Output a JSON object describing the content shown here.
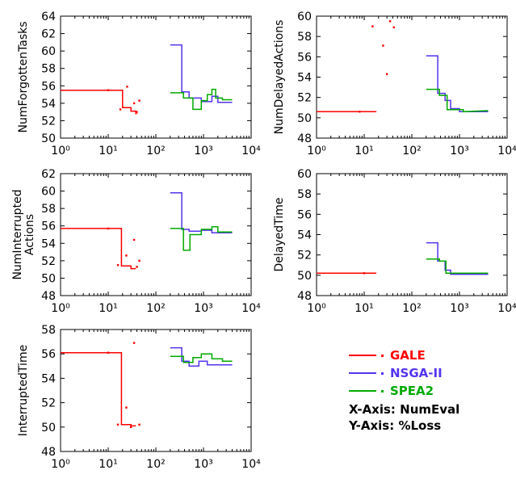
{
  "chart_data": [
    {
      "type": "line",
      "ylabel": "NumForgottenTasks",
      "xscale": "log",
      "xlim": [
        1,
        10000
      ],
      "ylim": [
        50,
        64
      ],
      "yticks": [
        50,
        52,
        54,
        56,
        58,
        60,
        62,
        64
      ],
      "xticks": [
        "10⁰",
        "10¹",
        "10²",
        "10³",
        "10⁴"
      ],
      "series": [
        {
          "name": "GALE",
          "color": "#ff0000",
          "line": [
            [
              1,
              55.5
            ],
            [
              20,
              55.5
            ],
            [
              20,
              53.5
            ],
            [
              30,
              53.5
            ],
            [
              30,
              53.1
            ],
            [
              38,
              53.1
            ],
            [
              38,
              52.8
            ],
            [
              40,
              52.8
            ]
          ],
          "points": [
            [
              10,
              55.5
            ],
            [
              25,
              55.9
            ],
            [
              35,
              54.0
            ],
            [
              45,
              54.3
            ],
            [
              40,
              53.0
            ],
            [
              18,
              53.3
            ]
          ]
        },
        {
          "name": "NSGA-II",
          "color": "#5533ee",
          "line": [
            [
              200,
              60.7
            ],
            [
              350,
              60.7
            ],
            [
              350,
              55.3
            ],
            [
              500,
              55.3
            ],
            [
              500,
              54.6
            ],
            [
              900,
              54.6
            ],
            [
              900,
              54.2
            ],
            [
              1500,
              54.2
            ],
            [
              1500,
              54.8
            ],
            [
              2000,
              54.8
            ],
            [
              2000,
              54.1
            ],
            [
              4000,
              54.1
            ]
          ]
        },
        {
          "name": "SPEA2",
          "color": "#00aa00",
          "line": [
            [
              200,
              55.2
            ],
            [
              380,
              55.2
            ],
            [
              380,
              54.6
            ],
            [
              600,
              54.6
            ],
            [
              600,
              53.3
            ],
            [
              900,
              53.3
            ],
            [
              900,
              54.3
            ],
            [
              1200,
              54.3
            ],
            [
              1200,
              55.0
            ],
            [
              1500,
              55.0
            ],
            [
              1500,
              55.6
            ],
            [
              1800,
              55.6
            ],
            [
              1800,
              54.6
            ],
            [
              2500,
              54.6
            ],
            [
              2500,
              54.4
            ],
            [
              4000,
              54.4
            ]
          ]
        }
      ]
    },
    {
      "type": "line",
      "ylabel": "NumDelayedActions",
      "xscale": "log",
      "xlim": [
        1,
        10000
      ],
      "ylim": [
        48,
        60
      ],
      "yticks": [
        48,
        50,
        52,
        54,
        56,
        58,
        60
      ],
      "xticks": [
        "10⁰",
        "10¹",
        "10²",
        "10³",
        "10⁴"
      ],
      "series": [
        {
          "name": "GALE",
          "color": "#ff0000",
          "line": [
            [
              1,
              50.6
            ],
            [
              18,
              50.6
            ]
          ],
          "points": [
            [
              15,
              59.0
            ],
            [
              25,
              57.1
            ],
            [
              30,
              54.3
            ],
            [
              35,
              59.5
            ],
            [
              42,
              58.9
            ],
            [
              8,
              50.6
            ]
          ]
        },
        {
          "name": "NSGA-II",
          "color": "#5533ee",
          "line": [
            [
              200,
              56.1
            ],
            [
              350,
              56.1
            ],
            [
              350,
              52.4
            ],
            [
              500,
              52.4
            ],
            [
              500,
              51.7
            ],
            [
              650,
              51.7
            ],
            [
              650,
              50.9
            ],
            [
              1000,
              50.9
            ],
            [
              1000,
              50.6
            ],
            [
              4000,
              50.6
            ]
          ]
        },
        {
          "name": "SPEA2",
          "color": "#00aa00",
          "line": [
            [
              200,
              52.8
            ],
            [
              380,
              52.8
            ],
            [
              380,
              52.2
            ],
            [
              550,
              52.2
            ],
            [
              550,
              50.8
            ],
            [
              1200,
              50.8
            ],
            [
              1200,
              50.6
            ],
            [
              4000,
              50.7
            ]
          ]
        }
      ]
    },
    {
      "type": "line",
      "ylabel": "NumInterrupted Actions",
      "xscale": "log",
      "xlim": [
        1,
        10000
      ],
      "ylim": [
        48,
        62
      ],
      "yticks": [
        48,
        50,
        52,
        54,
        56,
        58,
        60,
        62
      ],
      "xticks": [
        "10⁰",
        "10¹",
        "10²",
        "10³",
        "10⁴"
      ],
      "series": [
        {
          "name": "GALE",
          "color": "#ff0000",
          "line": [
            [
              1,
              55.7
            ],
            [
              19,
              55.7
            ],
            [
              19,
              51.4
            ],
            [
              30,
              51.4
            ],
            [
              30,
              51.1
            ],
            [
              38,
              51.1
            ]
          ],
          "points": [
            [
              10,
              55.7
            ],
            [
              16,
              51.5
            ],
            [
              24,
              52.6
            ],
            [
              35,
              54.4
            ],
            [
              40,
              51.3
            ],
            [
              45,
              52.0
            ]
          ]
        },
        {
          "name": "NSGA-II",
          "color": "#5533ee",
          "line": [
            [
              200,
              59.8
            ],
            [
              350,
              59.8
            ],
            [
              350,
              55.6
            ],
            [
              500,
              55.6
            ],
            [
              500,
              55.4
            ],
            [
              900,
              55.4
            ],
            [
              900,
              55.5
            ],
            [
              1500,
              55.5
            ],
            [
              1500,
              55.2
            ],
            [
              4000,
              55.2
            ]
          ]
        },
        {
          "name": "SPEA2",
          "color": "#00aa00",
          "line": [
            [
              200,
              55.7
            ],
            [
              380,
              55.7
            ],
            [
              380,
              53.2
            ],
            [
              520,
              53.2
            ],
            [
              520,
              55.0
            ],
            [
              900,
              55.0
            ],
            [
              900,
              55.6
            ],
            [
              1500,
              55.6
            ],
            [
              1500,
              55.9
            ],
            [
              2000,
              55.9
            ],
            [
              2000,
              55.3
            ],
            [
              4000,
              55.3
            ]
          ]
        }
      ]
    },
    {
      "type": "line",
      "ylabel": "DelayedTime",
      "xscale": "log",
      "xlim": [
        1,
        10000
      ],
      "ylim": [
        48,
        60
      ],
      "yticks": [
        48,
        50,
        52,
        54,
        56,
        58,
        60
      ],
      "xticks": [
        "10⁰",
        "10¹",
        "10²",
        "10³",
        "10⁴"
      ],
      "series": [
        {
          "name": "GALE",
          "color": "#ff0000",
          "line": [
            [
              1,
              50.2
            ],
            [
              18,
              50.2
            ]
          ],
          "points": [
            [
              10,
              50.2
            ]
          ]
        },
        {
          "name": "NSGA-II",
          "color": "#5533ee",
          "line": [
            [
              200,
              53.2
            ],
            [
              350,
              53.2
            ],
            [
              350,
              51.4
            ],
            [
              500,
              51.4
            ],
            [
              500,
              50.5
            ],
            [
              650,
              50.5
            ],
            [
              650,
              50.1
            ],
            [
              4000,
              50.1
            ]
          ]
        },
        {
          "name": "SPEA2",
          "color": "#00aa00",
          "line": [
            [
              200,
              51.6
            ],
            [
              380,
              51.6
            ],
            [
              380,
              51.4
            ],
            [
              520,
              51.4
            ],
            [
              520,
              50.2
            ],
            [
              4000,
              50.2
            ]
          ]
        }
      ]
    },
    {
      "type": "line",
      "ylabel": "InterruptedTime",
      "xscale": "log",
      "xlim": [
        1,
        10000
      ],
      "ylim": [
        48,
        58
      ],
      "yticks": [
        48,
        50,
        52,
        54,
        56,
        58
      ],
      "xticks": [
        "10⁰",
        "10¹",
        "10²",
        "10³",
        "10⁴"
      ],
      "series": [
        {
          "name": "GALE",
          "color": "#ff0000",
          "line": [
            [
              1,
              56.1
            ],
            [
              19,
              56.1
            ],
            [
              19,
              50.2
            ],
            [
              30,
              50.2
            ],
            [
              30,
              50.1
            ],
            [
              38,
              50.1
            ]
          ],
          "points": [
            [
              10,
              56.1
            ],
            [
              16,
              50.2
            ],
            [
              24,
              51.6
            ],
            [
              30,
              50.0
            ],
            [
              35,
              56.9
            ],
            [
              45,
              50.2
            ]
          ]
        },
        {
          "name": "NSGA-II",
          "color": "#5533ee",
          "line": [
            [
              200,
              56.5
            ],
            [
              350,
              56.5
            ],
            [
              350,
              55.4
            ],
            [
              500,
              55.4
            ],
            [
              500,
              55.0
            ],
            [
              800,
              55.0
            ],
            [
              800,
              55.4
            ],
            [
              1200,
              55.4
            ],
            [
              1200,
              55.1
            ],
            [
              4000,
              55.1
            ]
          ]
        },
        {
          "name": "SPEA2",
          "color": "#00aa00",
          "line": [
            [
              200,
              55.8
            ],
            [
              380,
              55.8
            ],
            [
              380,
              55.3
            ],
            [
              600,
              55.3
            ],
            [
              600,
              55.7
            ],
            [
              900,
              55.7
            ],
            [
              900,
              56.0
            ],
            [
              1500,
              56.0
            ],
            [
              1500,
              55.6
            ],
            [
              2500,
              55.6
            ],
            [
              2500,
              55.4
            ],
            [
              4000,
              55.4
            ]
          ]
        }
      ]
    }
  ],
  "legend": {
    "items": [
      {
        "label": "GALE",
        "color": "#ff0000"
      },
      {
        "label": "NSGA-II",
        "color": "#5533ee"
      },
      {
        "label": "SPEA2",
        "color": "#00aa00"
      }
    ],
    "x_note": "X-Axis: NumEval",
    "y_note": "Y-Axis: %Loss"
  }
}
